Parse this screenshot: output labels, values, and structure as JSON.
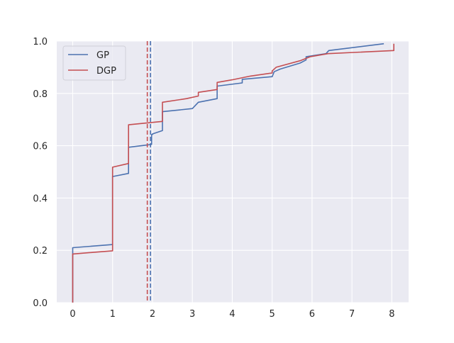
{
  "chart_data": {
    "type": "line",
    "title": "",
    "xlabel": "",
    "ylabel": "",
    "xlim": [
      -0.4,
      8.42
    ],
    "ylim": [
      0.0,
      1.0
    ],
    "xticks": [
      0,
      1,
      2,
      3,
      4,
      5,
      6,
      7,
      8
    ],
    "yticks": [
      0.0,
      0.2,
      0.4,
      0.6,
      0.8,
      1.0
    ],
    "xtick_labels": [
      "0",
      "1",
      "2",
      "3",
      "4",
      "5",
      "6",
      "7",
      "8"
    ],
    "ytick_labels": [
      "0.0",
      "0.2",
      "0.4",
      "0.6",
      "0.8",
      "1.0"
    ],
    "grid": true,
    "legend_position": "top-left",
    "background_color": "#EAEAF2",
    "grid_color": "#FFFFFF",
    "series": [
      {
        "name": "GP",
        "color": "#4C72B0",
        "style": "solid",
        "points": [
          [
            0.0,
            0.0
          ],
          [
            0.0,
            0.21
          ],
          [
            1.0,
            0.222
          ],
          [
            1.0,
            0.482
          ],
          [
            1.4,
            0.494
          ],
          [
            1.4,
            0.594
          ],
          [
            1.98,
            0.605
          ],
          [
            1.98,
            0.643
          ],
          [
            2.0,
            0.643
          ],
          [
            2.0,
            0.645
          ],
          [
            2.25,
            0.658
          ],
          [
            2.25,
            0.73
          ],
          [
            3.0,
            0.742
          ],
          [
            3.15,
            0.766
          ],
          [
            3.62,
            0.78
          ],
          [
            3.62,
            0.828
          ],
          [
            4.25,
            0.84
          ],
          [
            4.25,
            0.854
          ],
          [
            5.0,
            0.864
          ],
          [
            5.05,
            0.883
          ],
          [
            5.2,
            0.893
          ],
          [
            5.7,
            0.916
          ],
          [
            5.85,
            0.928
          ],
          [
            5.85,
            0.94
          ],
          [
            6.35,
            0.952
          ],
          [
            6.42,
            0.964
          ],
          [
            7.8,
            0.99
          ]
        ]
      },
      {
        "name": "DGP",
        "color": "#C44E52",
        "style": "solid",
        "points": [
          [
            0.0,
            0.0
          ],
          [
            0.0,
            0.186
          ],
          [
            1.0,
            0.198
          ],
          [
            1.0,
            0.518
          ],
          [
            1.4,
            0.532
          ],
          [
            1.4,
            0.68
          ],
          [
            2.25,
            0.693
          ],
          [
            2.25,
            0.766
          ],
          [
            2.85,
            0.78
          ],
          [
            3.15,
            0.79
          ],
          [
            3.15,
            0.804
          ],
          [
            3.62,
            0.815
          ],
          [
            3.62,
            0.842
          ],
          [
            4.0,
            0.852
          ],
          [
            4.45,
            0.866
          ],
          [
            5.0,
            0.878
          ],
          [
            5.0,
            0.886
          ],
          [
            5.1,
            0.9
          ],
          [
            5.7,
            0.925
          ],
          [
            5.95,
            0.94
          ],
          [
            6.4,
            0.952
          ],
          [
            8.05,
            0.964
          ],
          [
            8.05,
            0.99
          ]
        ]
      }
    ],
    "vlines": [
      {
        "name": "GP",
        "x": 1.95,
        "color": "#4C72B0",
        "style": "dashed"
      },
      {
        "name": "DGP",
        "x": 1.87,
        "color": "#C44E52",
        "style": "dashed"
      }
    ],
    "legend": [
      {
        "label": "GP",
        "color": "#4C72B0"
      },
      {
        "label": "DGP",
        "color": "#C44E52"
      }
    ]
  }
}
